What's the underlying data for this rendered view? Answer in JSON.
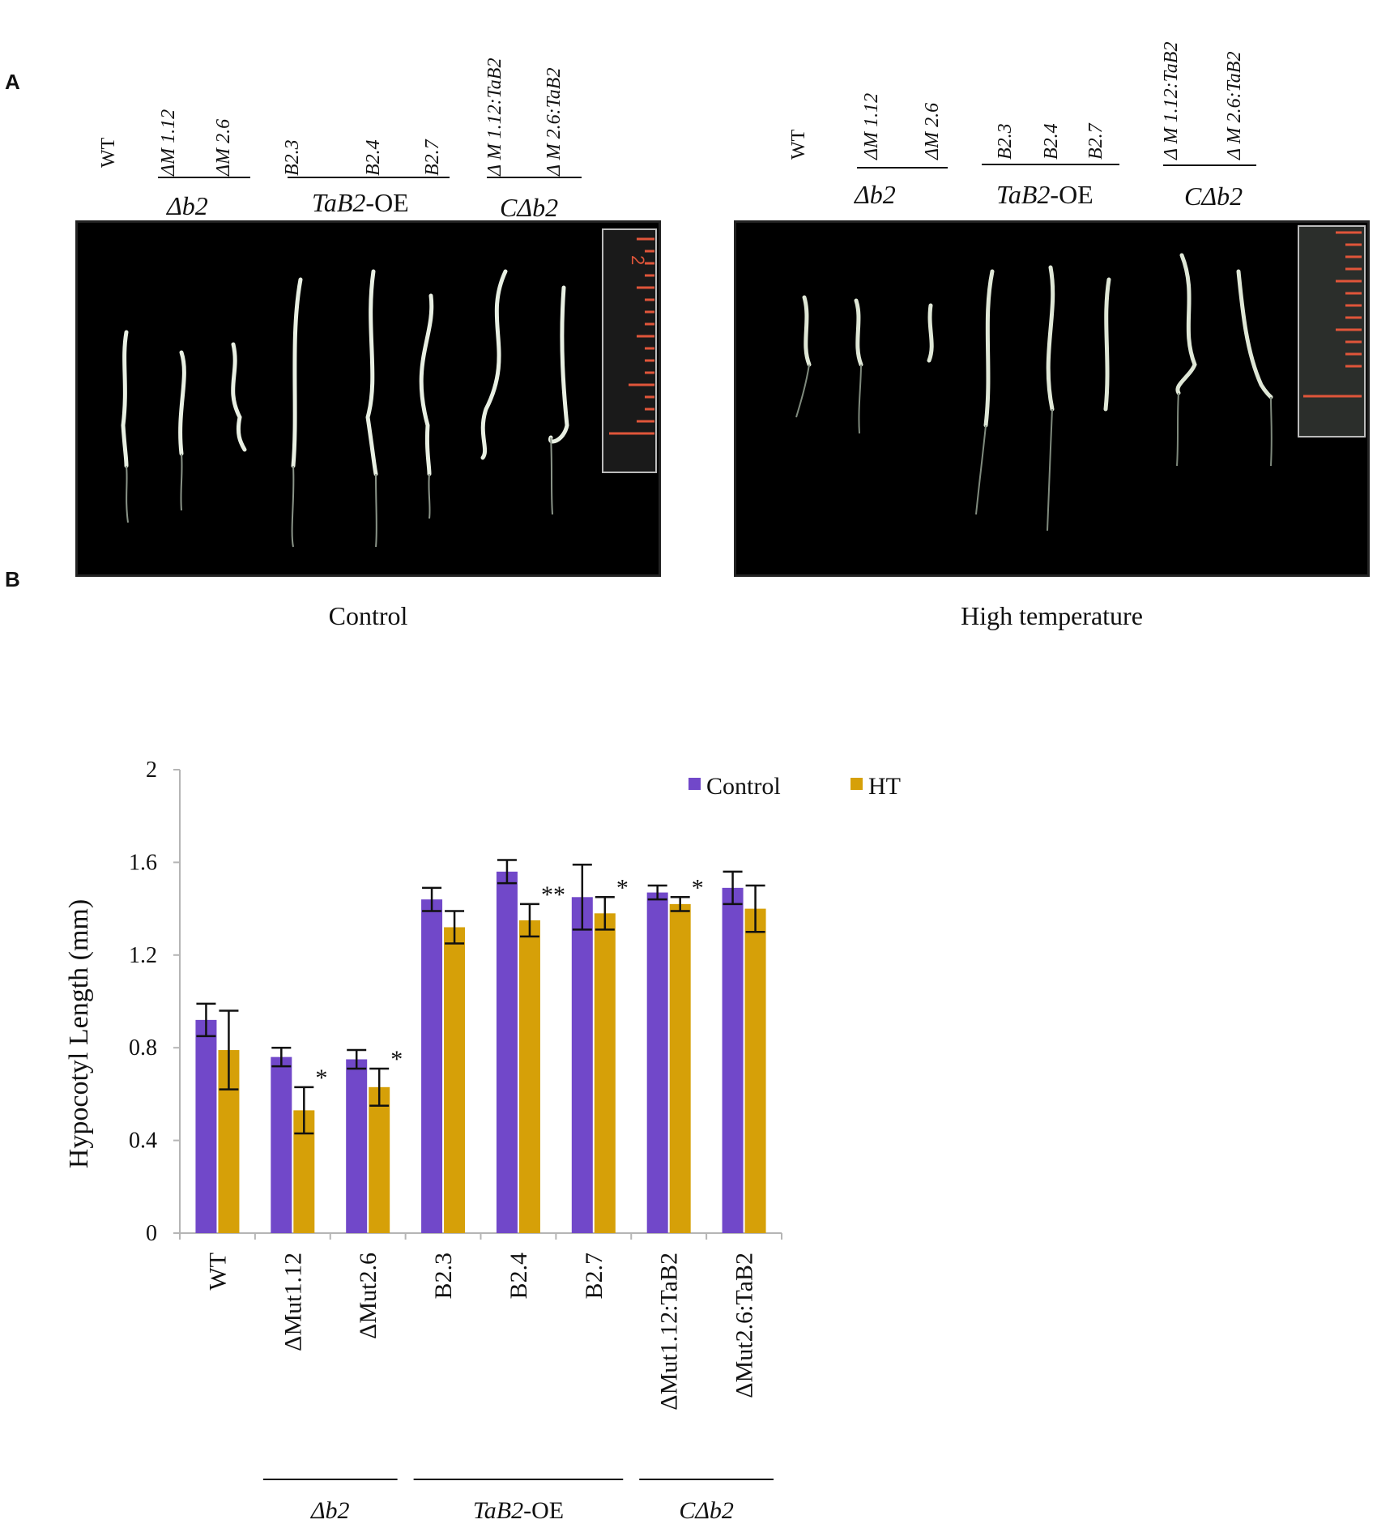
{
  "panels": {
    "a_label": "A",
    "b_label": "B"
  },
  "photos": {
    "left": {
      "condition": "Control",
      "samples": [
        "WT",
        "ΔM 1.12",
        "ΔM 2.6",
        "B2.3",
        "B2.4",
        "B2.7",
        "Δ M 1.12:TaB2",
        "Δ M 2.6:TaB2"
      ],
      "ruler_number": "2"
    },
    "right": {
      "condition": "High temperature",
      "samples": [
        "WT",
        "ΔM 1.12",
        "ΔM 2.6",
        "B2.3",
        "B2.4",
        "B2.7",
        "Δ M 1.12:TaB2",
        "Δ M 2.6:TaB2"
      ]
    },
    "groups": {
      "db2": "Δb2",
      "oe_italic": "TaB2",
      "oe_suffix": "-OE",
      "cdb2": "CΔb2"
    }
  },
  "chart_data": {
    "type": "bar",
    "ylabel": "Hypocotyl Length (mm)",
    "xlabel": "",
    "ylim": [
      0,
      2
    ],
    "yticks": [
      "0",
      "0.4",
      "0.8",
      "1.2",
      "1.6",
      "2"
    ],
    "categories": [
      "WT",
      "ΔMut1.12",
      "ΔMut2.6",
      "B2.3",
      "B2.4",
      "B2.7",
      "ΔMut1.12:TaB2",
      "ΔMut2.6:TaB2"
    ],
    "series": [
      {
        "name": "Control",
        "color": "#7148c9",
        "values": [
          0.92,
          0.76,
          0.75,
          1.44,
          1.56,
          1.45,
          1.47,
          1.49
        ],
        "errors": [
          0.07,
          0.04,
          0.04,
          0.05,
          0.05,
          0.14,
          0.03,
          0.07
        ]
      },
      {
        "name": "HT",
        "color": "#d6a008",
        "values": [
          0.79,
          0.53,
          0.63,
          1.32,
          1.35,
          1.38,
          1.42,
          1.4
        ],
        "errors": [
          0.17,
          0.1,
          0.08,
          0.07,
          0.07,
          0.07,
          0.03,
          0.1
        ]
      }
    ],
    "significance": [
      "",
      "*",
      "*",
      "",
      "**",
      "*",
      "*",
      ""
    ],
    "legend_position": "top",
    "grid": false,
    "group_labels": [
      {
        "text": "Δb2",
        "from": 1,
        "to": 2
      },
      {
        "text_italic": "TaB2",
        "text_suffix": "-OE",
        "from": 3,
        "to": 5
      },
      {
        "text": "CΔb2",
        "from": 6,
        "to": 7
      }
    ]
  }
}
